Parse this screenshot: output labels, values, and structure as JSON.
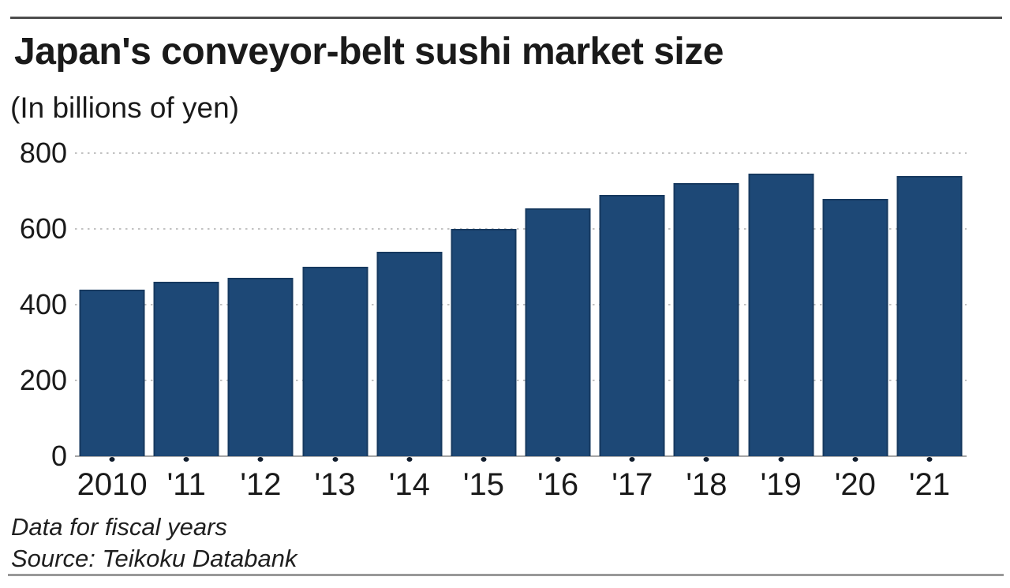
{
  "header": {
    "title": "Japan's conveyor-belt sushi market size",
    "subtitle": "(In billions of yen)"
  },
  "chart_data": {
    "type": "bar",
    "title": "Japan's conveyor-belt sushi market size",
    "subtitle": "(In billions of yen)",
    "categories": [
      "2010",
      "'11",
      "'12",
      "'13",
      "'14",
      "'15",
      "'16",
      "'17",
      "'18",
      "'19",
      "'20",
      "'21"
    ],
    "values": [
      440,
      460,
      470,
      500,
      540,
      600,
      655,
      690,
      720,
      745,
      680,
      740
    ],
    "xlabel": "",
    "ylabel": "(In billions of yen)",
    "ylim": [
      0,
      800
    ],
    "y_ticks": [
      800,
      600,
      400,
      200,
      0
    ],
    "grid": "horizontal-dotted",
    "legend": "none",
    "bar_color": "#1d4876",
    "bar_edge_color": "#16395f",
    "gridline_color": "#c2c2c2",
    "axis_line_color": "#a6a6a6",
    "tick_dot_color": "#101c2c"
  },
  "footer": {
    "note": "Data for fiscal years",
    "source": "Source: Teikoku Databank"
  }
}
